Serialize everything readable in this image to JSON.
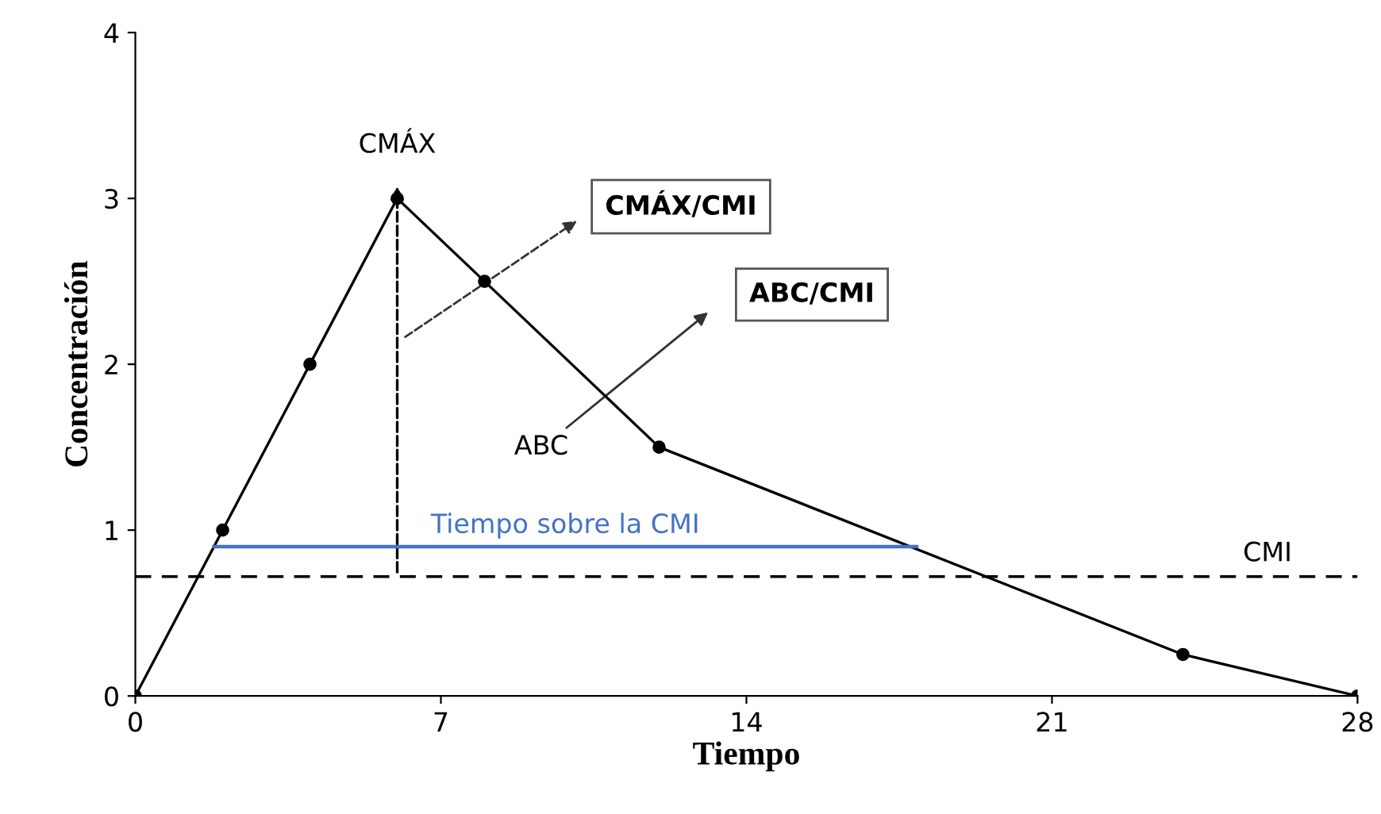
{
  "chart_data": {
    "type": "line",
    "xlabel": "Tiempo",
    "ylabel": "Concentración",
    "series": [
      {
        "x": [
          0,
          2,
          4,
          6,
          8,
          12,
          24,
          28
        ],
        "values": [
          0,
          1,
          2,
          3,
          2.5,
          1.5,
          0.25,
          0
        ],
        "color": "#000000",
        "marker": "circle",
        "line_style": "solid"
      },
      {
        "name": "Tiempo sobre la CMI",
        "x": [
          1.8,
          17.9
        ],
        "values": [
          0.9,
          0.9
        ],
        "color": "#4472c4",
        "marker": "none",
        "line_style": "solid"
      }
    ],
    "ref_lines": [
      {
        "axis": "y",
        "value": 0.72,
        "label": "CMI",
        "color": "#000000",
        "line_style": "dashed"
      }
    ],
    "annotations": [
      {
        "text": "CMÁX",
        "x": 6,
        "y": 3
      },
      "CMÁX/CMI",
      "ABC/CMI",
      "ABC"
    ],
    "xlim": [
      0,
      28
    ],
    "ylim": [
      0,
      4
    ],
    "xticks": [
      0,
      7,
      14,
      21,
      28
    ],
    "yticks": [
      0,
      1,
      2,
      3,
      4
    ],
    "grid": false,
    "legend": false
  }
}
